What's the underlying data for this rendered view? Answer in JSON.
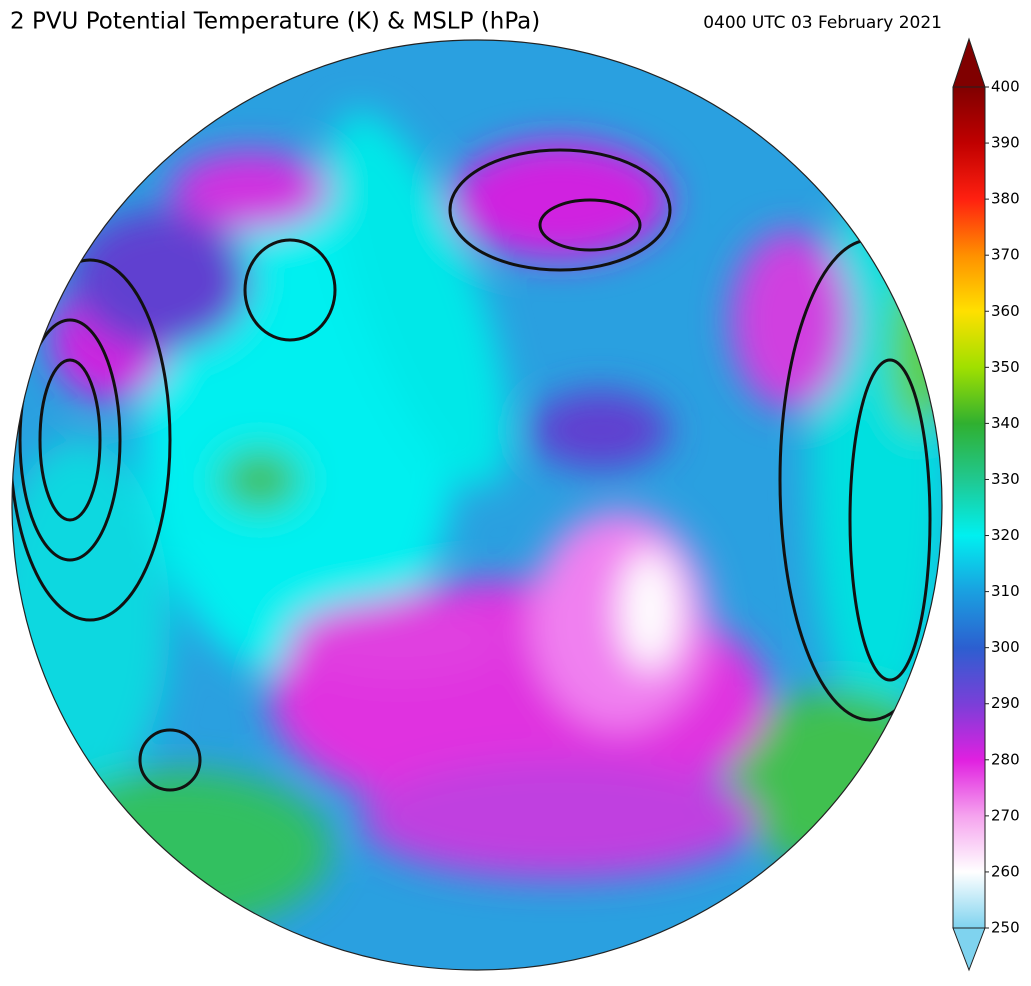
{
  "title": "2 PVU Potential Temperature (K) & MSLP (hPa)",
  "valid_time": "0400 UTC 03 February 2021",
  "colorbar": {
    "range": [
      250,
      400
    ],
    "ticks": [
      250,
      260,
      270,
      280,
      290,
      300,
      310,
      320,
      330,
      340,
      350,
      360,
      370,
      380,
      390,
      400
    ],
    "colors": [
      "#7fd3ef",
      "#ffffff",
      "#f5a3ee",
      "#e020e0",
      "#7a3fd8",
      "#2c5fd0",
      "#1aa0e0",
      "#00f0f0",
      "#20c890",
      "#30b030",
      "#a0e000",
      "#ffe000",
      "#ff9000",
      "#ff2010",
      "#c00000",
      "#800000"
    ]
  }
}
